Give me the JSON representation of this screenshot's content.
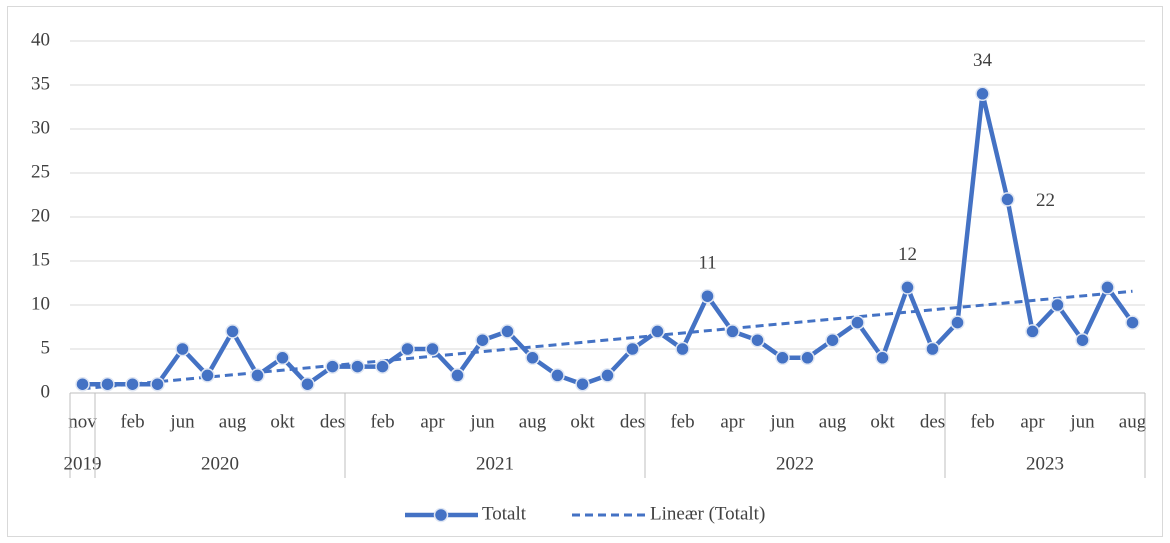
{
  "chart_data": {
    "type": "line",
    "categories": [
      "nov",
      null,
      "feb",
      null,
      "jun",
      null,
      "aug",
      null,
      "okt",
      null,
      "des",
      null,
      "feb",
      null,
      "apr",
      null,
      "jun",
      null,
      "aug",
      null,
      "okt",
      null,
      "des",
      null,
      "feb",
      null,
      "apr",
      null,
      "jun",
      null,
      "aug",
      null,
      "okt",
      null,
      "des",
      null,
      "feb",
      null,
      "apr",
      null,
      "jun",
      null,
      "aug"
    ],
    "year_groups": [
      {
        "label": "2019",
        "count": 1
      },
      {
        "label": "2020",
        "count": 10
      },
      {
        "label": "2021",
        "count": 12
      },
      {
        "label": "2022",
        "count": 12
      },
      {
        "label": "2023",
        "count": 8
      }
    ],
    "series": [
      {
        "name": "Totalt",
        "color": "#4472c4",
        "values": [
          1,
          1,
          1,
          1,
          5,
          2,
          7,
          2,
          4,
          1,
          3,
          3,
          3,
          5,
          5,
          2,
          6,
          7,
          4,
          2,
          1,
          2,
          5,
          7,
          5,
          11,
          7,
          6,
          4,
          4,
          6,
          8,
          4,
          12,
          5,
          8,
          34,
          22,
          7,
          10,
          6,
          12,
          8
        ]
      }
    ],
    "labeled_indices": [
      25,
      33,
      36,
      37
    ],
    "trendline": {
      "type": "linear",
      "name": "Lineær (Totalt)"
    },
    "ylim": [
      0,
      40
    ],
    "yticks": [
      0,
      5,
      10,
      15,
      20,
      25,
      30,
      35,
      40
    ],
    "grid": true,
    "legend": "bottom"
  }
}
